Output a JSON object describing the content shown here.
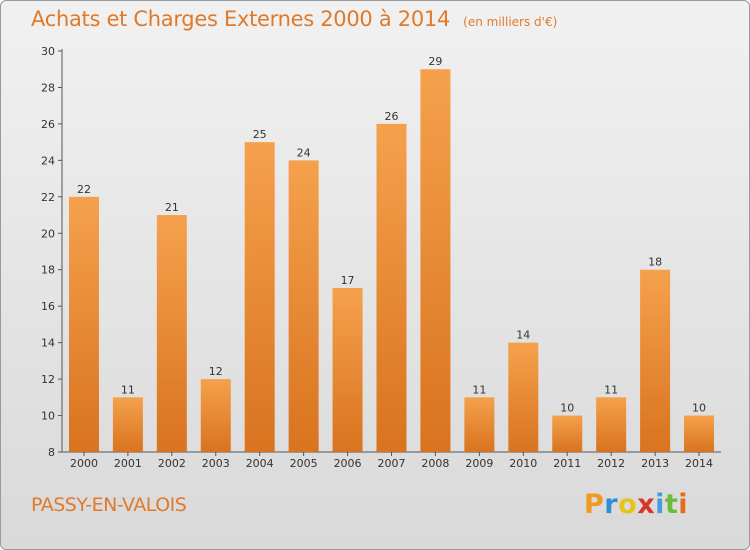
{
  "chart_data": {
    "type": "bar",
    "title": "Achats et Charges Externes 2000 à 2014",
    "subtitle": "(en milliers d'€)",
    "categories": [
      "2000",
      "2001",
      "2002",
      "2003",
      "2004",
      "2005",
      "2006",
      "2007",
      "2008",
      "2009",
      "2010",
      "2011",
      "2012",
      "2013",
      "2014"
    ],
    "values": [
      22,
      11,
      21,
      12,
      25,
      24,
      17,
      26,
      29,
      11,
      14,
      10,
      11,
      18,
      10
    ],
    "ylim": [
      8,
      30
    ],
    "yticks": [
      8,
      10,
      12,
      14,
      16,
      18,
      20,
      22,
      24,
      26,
      28,
      30
    ],
    "grid": false,
    "bar_color_top": "#f5a14c",
    "bar_color_bottom": "#d9731f"
  },
  "commune": "PASSY-EN-VALOIS",
  "logo": {
    "letters": [
      "P",
      "r",
      "o",
      "x",
      "i",
      "t",
      "i"
    ],
    "colors": [
      "#f29a1f",
      "#2f8fd6",
      "#e8c31c",
      "#d8342b",
      "#4a9bd9",
      "#6dbb3c",
      "#e86a1c"
    ]
  }
}
